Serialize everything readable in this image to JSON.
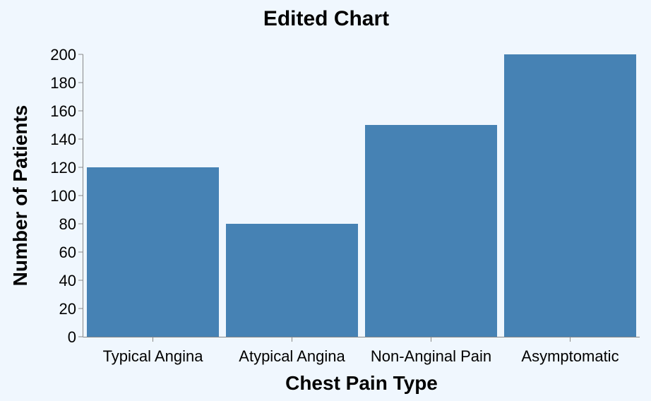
{
  "chart_data": {
    "type": "bar",
    "title": "Edited Chart",
    "xlabel": "Chest Pain Type",
    "ylabel": "Number of Patients",
    "categories": [
      "Typical Angina",
      "Atypical Angina",
      "Non-Anginal Pain",
      "Asymptomatic"
    ],
    "values": [
      120,
      80,
      150,
      200
    ],
    "ylim": [
      0,
      200
    ],
    "yticks": [
      0,
      20,
      40,
      60,
      80,
      100,
      120,
      140,
      160,
      180,
      200
    ],
    "grid": false,
    "legend": "none",
    "bar_color": "#4682b4",
    "background": "#f0f7fe"
  }
}
